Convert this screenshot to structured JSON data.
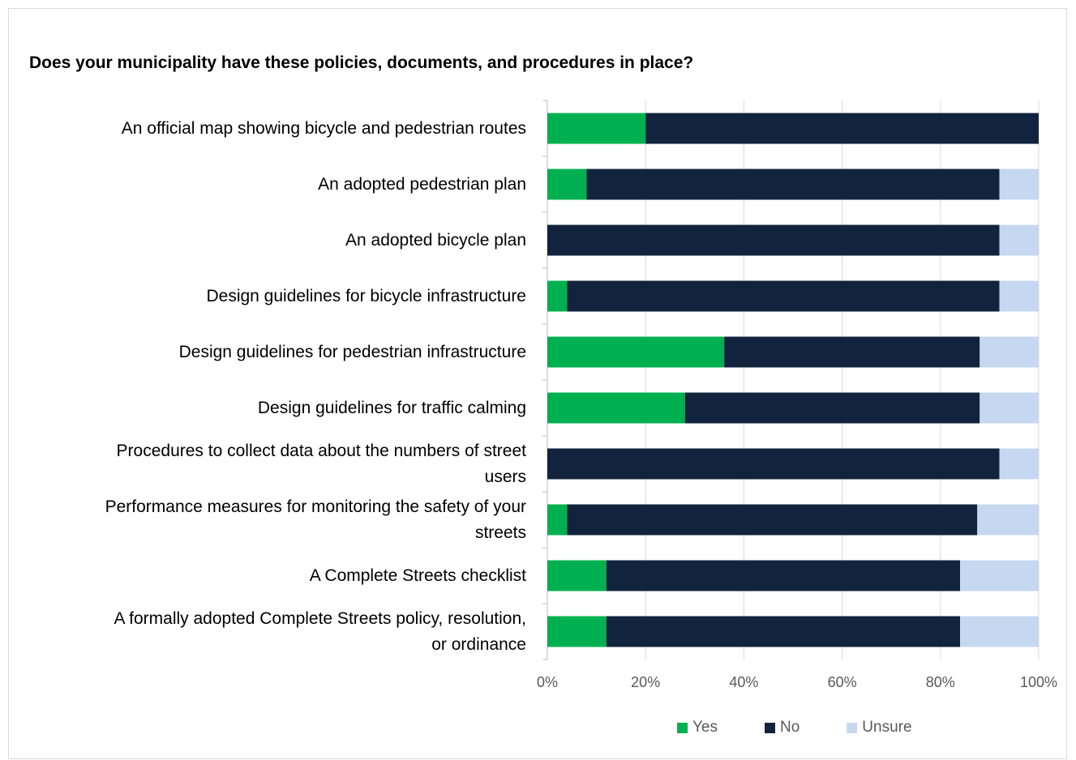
{
  "chart_data": {
    "type": "bar",
    "orientation": "horizontal",
    "stacked": "percent",
    "title": "Does your municipality have these policies, documents, and procedures in place?",
    "categories": [
      "An official map showing bicycle and pedestrian routes",
      "An adopted pedestrian plan",
      "An adopted bicycle plan",
      "Design guidelines for bicycle infrastructure",
      "Design guidelines for pedestrian infrastructure",
      "Design guidelines for traffic calming",
      "Procedures to collect data about the numbers of street users",
      "Performance measures for monitoring the safety of your streets",
      "A Complete Streets checklist",
      "A formally adopted Complete Streets policy, resolution, or ordinance"
    ],
    "category_display": [
      "An official map showing bicycle and pedestrian routes",
      "An adopted pedestrian plan",
      "An adopted bicycle plan",
      "Design guidelines for bicycle infrastructure",
      "Design guidelines for pedestrian infrastructure",
      "Design guidelines for traffic calming",
      "Procedures to collect data about the numbers of street\nusers",
      "Performance measures for monitoring the safety of your\nstreets",
      "A Complete Streets checklist",
      "A formally adopted Complete Streets policy, resolution,\nor ordinance"
    ],
    "series": [
      {
        "name": "Yes",
        "color": "#00b050",
        "values": [
          20,
          8,
          0,
          4,
          36,
          28,
          0,
          4,
          12,
          12
        ]
      },
      {
        "name": "No",
        "color": "#12233d",
        "values": [
          80,
          84,
          92,
          88,
          52,
          60,
          92,
          83.5,
          72,
          72
        ]
      },
      {
        "name": "Unsure",
        "color": "#c6d8ef",
        "values": [
          0,
          8,
          8,
          8,
          12,
          12,
          8,
          12.5,
          16,
          16
        ]
      }
    ],
    "xlim": [
      0,
      100
    ],
    "xticks": [
      "0%",
      "20%",
      "40%",
      "60%",
      "80%",
      "100%"
    ],
    "grid": true,
    "legend_position": "bottom"
  }
}
